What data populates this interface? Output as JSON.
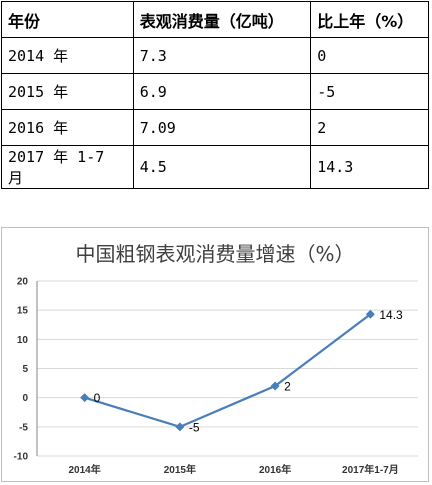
{
  "table": {
    "headers": [
      "年份",
      "表观消费量（亿吨）",
      "比上年（%）"
    ],
    "rows": [
      [
        "2014 年",
        "7.3",
        "0"
      ],
      [
        "2015 年",
        "6.9",
        "-5"
      ],
      [
        "2016 年",
        "7.09",
        "2"
      ],
      [
        "2017 年 1-7 月",
        "4.5",
        "14.3"
      ]
    ]
  },
  "chart_data": {
    "type": "line",
    "title": "中国粗钢表观消费量增速（%）",
    "categories": [
      "2014年",
      "2015年",
      "2016年",
      "2017年1-7月"
    ],
    "series": [
      {
        "values": [
          0,
          -5,
          2,
          14.3
        ],
        "labels": [
          "0",
          "-5",
          "2",
          "14.3"
        ],
        "color": "#4a7ebb"
      }
    ],
    "ylim": [
      -10,
      20
    ],
    "yticks": [
      20,
      15,
      10,
      5,
      0,
      -5,
      -10
    ],
    "grid": true,
    "legend": "none"
  }
}
